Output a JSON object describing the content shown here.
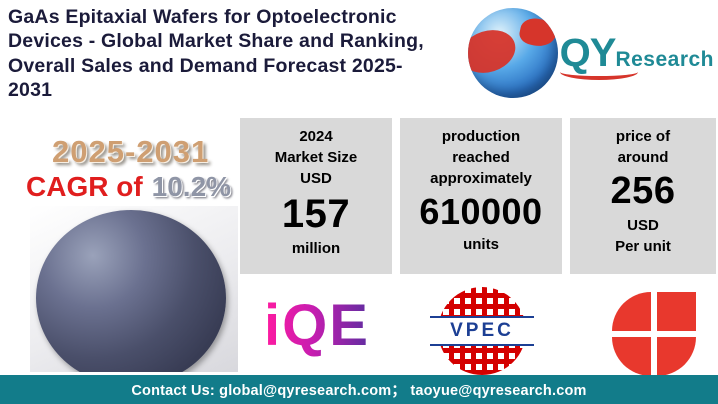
{
  "header": {
    "title_lines": [
      "GaAs Epitaxial Wafers for Optoelectronic",
      "Devices - Global Market Share and Ranking,",
      "Overall Sales and Demand Forecast 2025-",
      "2031"
    ],
    "logo": {
      "qy": "QY",
      "research": "Research"
    }
  },
  "highlights": {
    "period": "2025-2031",
    "cagr_label": "CAGR of",
    "cagr_value": "10.2%"
  },
  "stats": [
    {
      "top": [
        "2024",
        "Market Size",
        "USD"
      ],
      "value": "157",
      "bottom": [
        "million"
      ]
    },
    {
      "top": [
        "production",
        "reached",
        "approximately"
      ],
      "value": "610000",
      "bottom": [
        "units"
      ]
    },
    {
      "top": [
        "price of",
        "around"
      ],
      "value": "256",
      "bottom": [
        "USD",
        "Per unit"
      ]
    }
  ],
  "logos": {
    "iqe": "iQE",
    "vpec": "VPEC"
  },
  "colors": {
    "accent_teal": "#127c8a",
    "accent_red": "#e01e1e",
    "card_gray": "#d9d9d9",
    "title_navy": "#1b1b3a"
  },
  "footer": {
    "contact": "Contact Us: global@qyresearch.com；  taoyue@qyresearch.com"
  }
}
